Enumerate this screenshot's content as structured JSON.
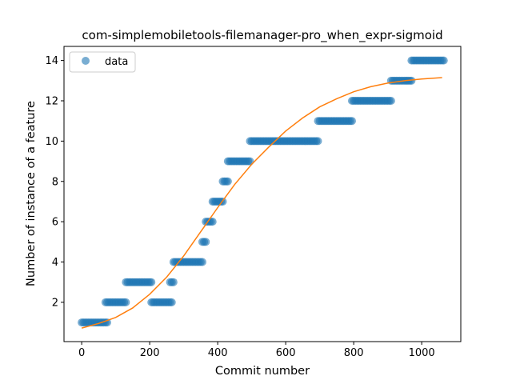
{
  "chart_data": {
    "type": "scatter",
    "title": "com-simplemobiletools-filemanager-pro_when_expr-sigmoid",
    "xlabel": "Commit number",
    "ylabel": "Number of instance of a feature",
    "xlim": [
      -52,
      1115
    ],
    "ylim": [
      0.05,
      14.7
    ],
    "xticks": [
      0,
      200,
      400,
      600,
      800,
      1000
    ],
    "yticks": [
      2,
      4,
      6,
      8,
      10,
      12,
      14
    ],
    "grid": false,
    "legend": {
      "position": "top-left",
      "entries": [
        "data"
      ]
    },
    "colors": {
      "data": "#1f77b4",
      "fit": "#ff7f0e"
    },
    "series": [
      {
        "name": "data",
        "kind": "scatter",
        "segments": [
          {
            "x_start": 0,
            "x_end": 75,
            "y": 1
          },
          {
            "x_start": 70,
            "x_end": 130,
            "y": 2
          },
          {
            "x_start": 130,
            "x_end": 205,
            "y": 3
          },
          {
            "x_start": 205,
            "x_end": 265,
            "y": 2
          },
          {
            "x_start": 260,
            "x_end": 270,
            "y": 3
          },
          {
            "x_start": 270,
            "x_end": 355,
            "y": 4
          },
          {
            "x_start": 355,
            "x_end": 365,
            "y": 5
          },
          {
            "x_start": 365,
            "x_end": 385,
            "y": 6
          },
          {
            "x_start": 385,
            "x_end": 415,
            "y": 7
          },
          {
            "x_start": 415,
            "x_end": 430,
            "y": 8
          },
          {
            "x_start": 430,
            "x_end": 495,
            "y": 9
          },
          {
            "x_start": 495,
            "x_end": 695,
            "y": 10
          },
          {
            "x_start": 695,
            "x_end": 795,
            "y": 11
          },
          {
            "x_start": 795,
            "x_end": 910,
            "y": 12
          },
          {
            "x_start": 910,
            "x_end": 970,
            "y": 13
          },
          {
            "x_start": 970,
            "x_end": 1065,
            "y": 14
          }
        ]
      },
      {
        "name": "sigmoid-fit",
        "kind": "line",
        "points": [
          [
            0,
            0.72
          ],
          [
            50,
            0.95
          ],
          [
            100,
            1.25
          ],
          [
            150,
            1.72
          ],
          [
            200,
            2.4
          ],
          [
            250,
            3.25
          ],
          [
            300,
            4.3
          ],
          [
            350,
            5.5
          ],
          [
            400,
            6.7
          ],
          [
            450,
            7.85
          ],
          [
            500,
            8.85
          ],
          [
            550,
            9.7
          ],
          [
            600,
            10.5
          ],
          [
            650,
            11.15
          ],
          [
            700,
            11.7
          ],
          [
            750,
            12.1
          ],
          [
            800,
            12.45
          ],
          [
            850,
            12.7
          ],
          [
            900,
            12.88
          ],
          [
            950,
            13.0
          ],
          [
            1000,
            13.08
          ],
          [
            1060,
            13.15
          ]
        ]
      }
    ]
  }
}
